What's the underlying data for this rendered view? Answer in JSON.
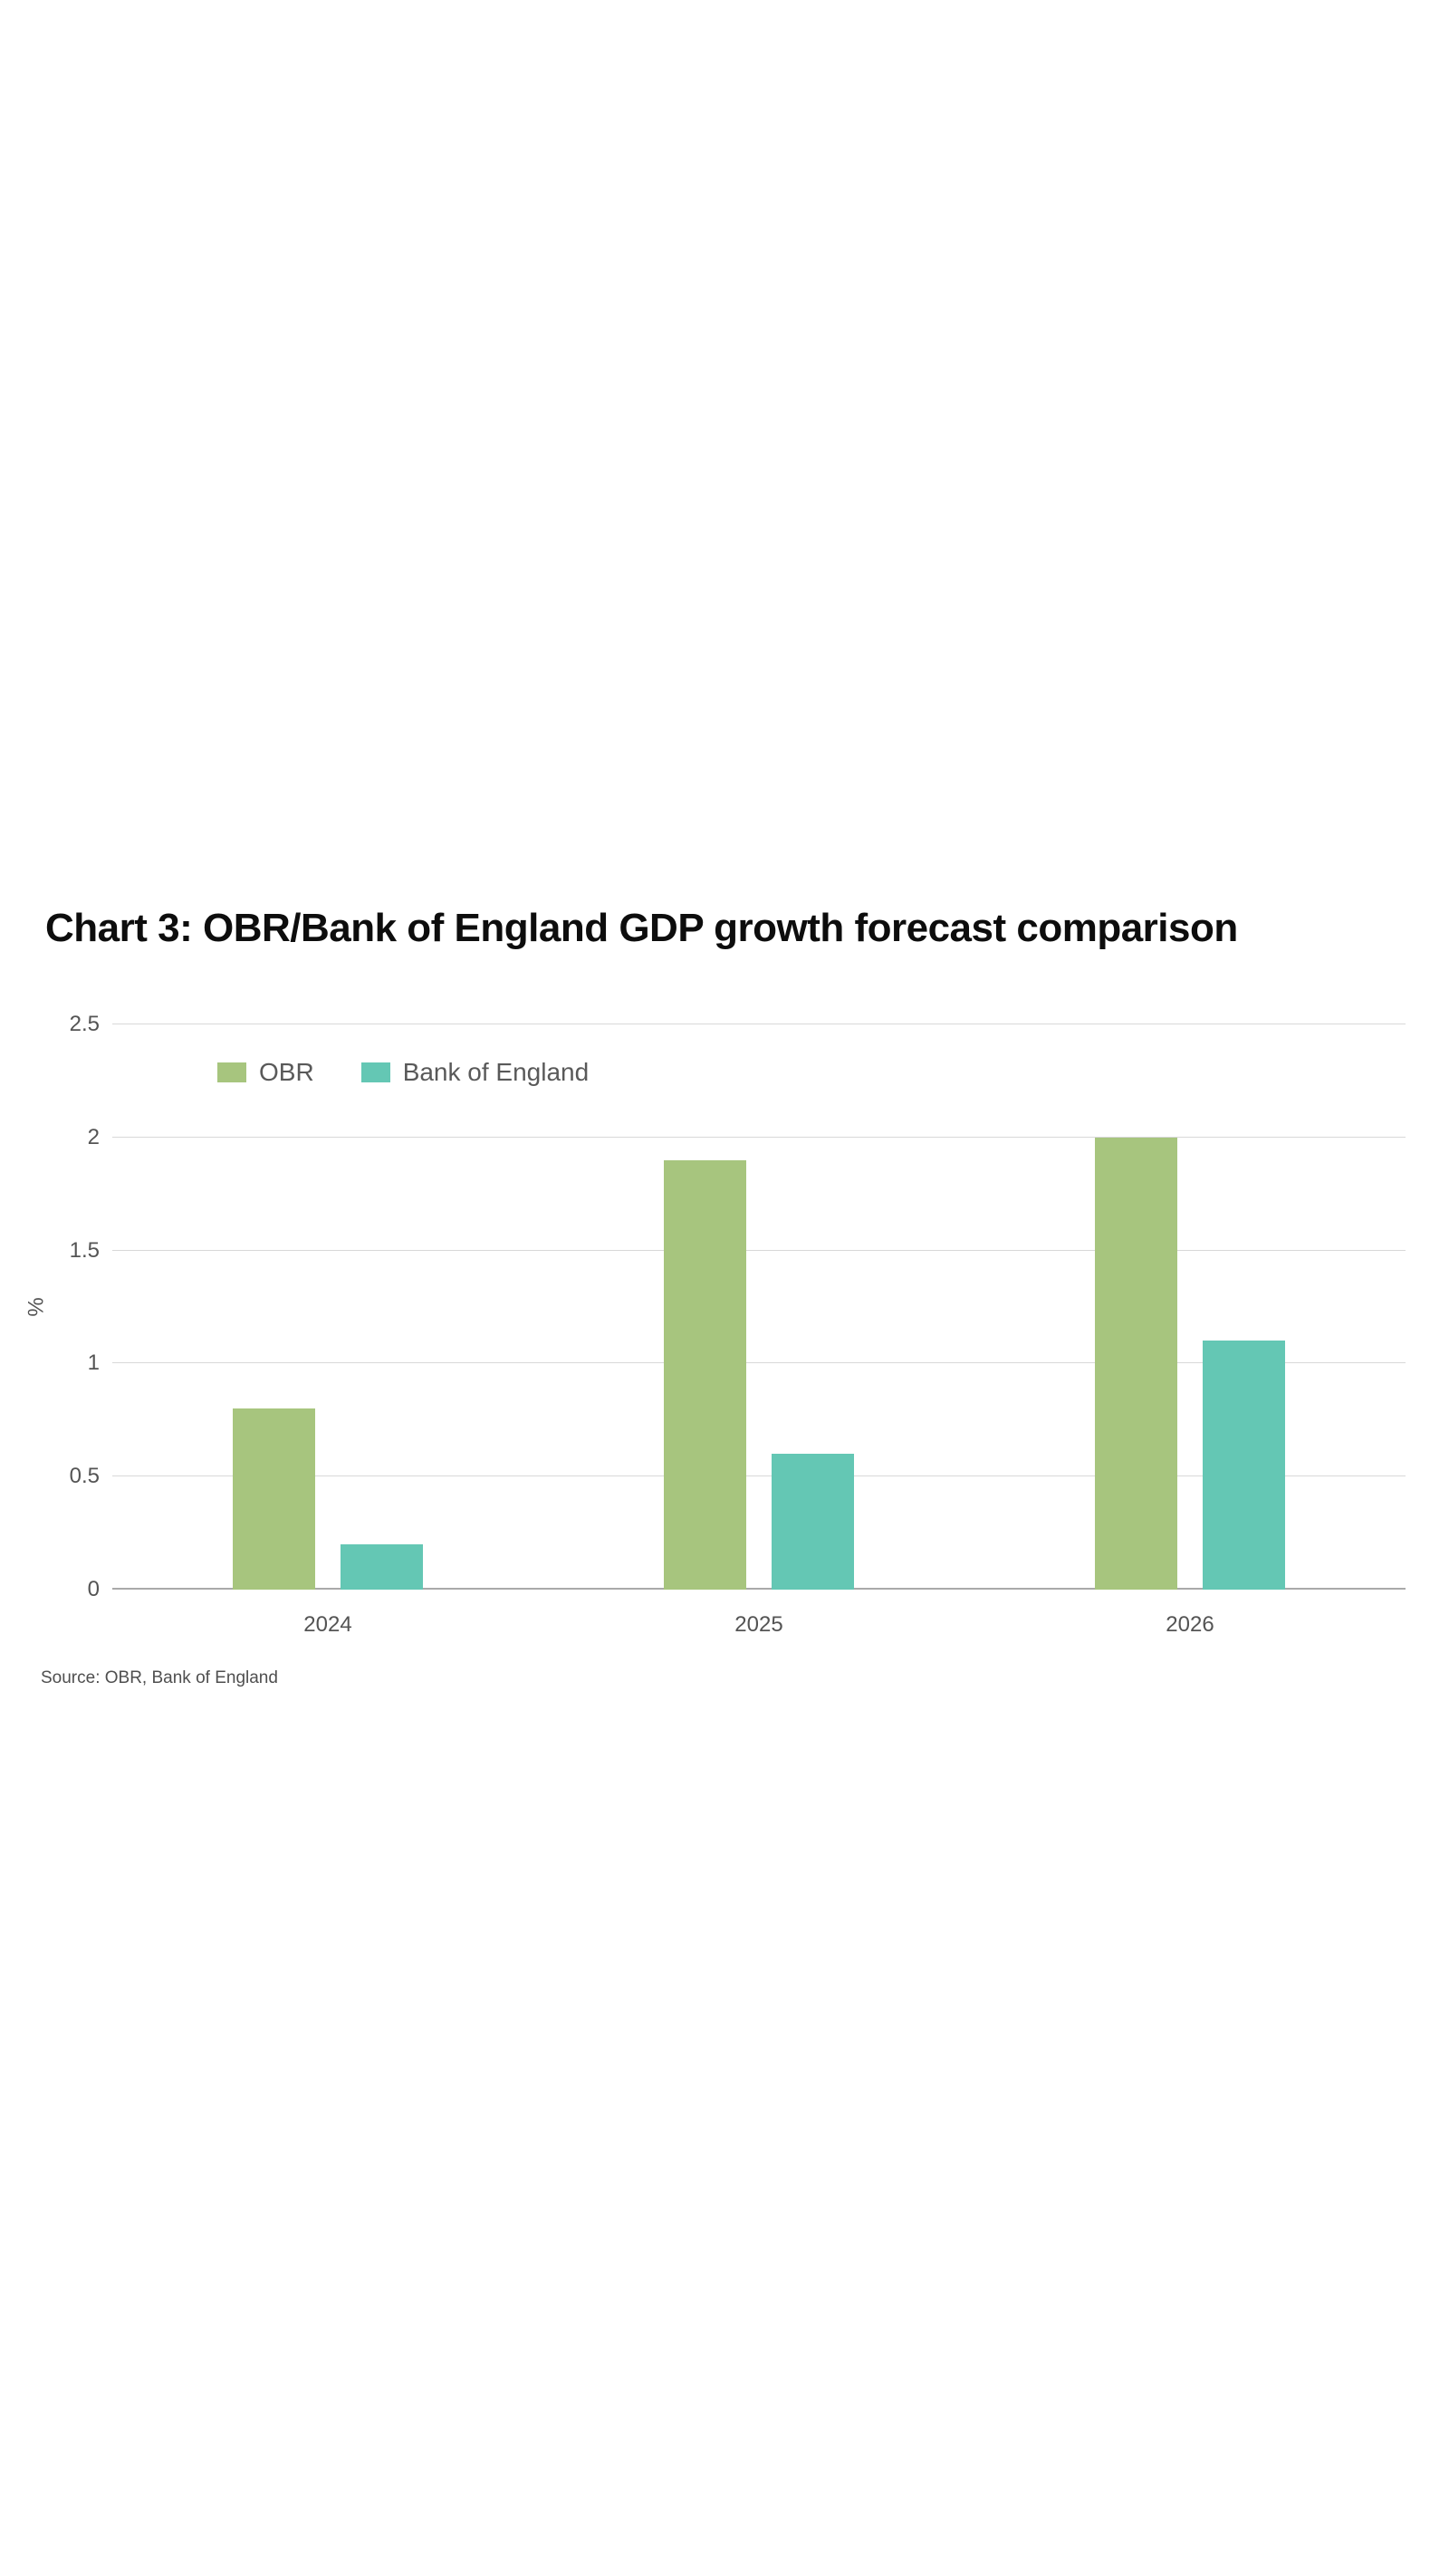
{
  "source_note": "Source: OBR, Bank of England",
  "colors": {
    "title_text": "#0d0d0d",
    "axis_text": "#545454",
    "legend_text": "#595959",
    "source_text": "#4f4f4f",
    "gridline": "#d8d8d8",
    "axis_line": "#a9a9a9",
    "background": "#ffffff"
  },
  "chart_data": {
    "type": "bar",
    "title": "Chart 3: OBR/Bank of England GDP growth forecast comparison",
    "categories": [
      "2024",
      "2025",
      "2026"
    ],
    "series": [
      {
        "name": "OBR",
        "color": "#a7c57e",
        "values": [
          0.8,
          1.9,
          2.0
        ]
      },
      {
        "name": "Bank of England",
        "color": "#64c7b4",
        "values": [
          0.2,
          0.6,
          1.1
        ]
      }
    ],
    "xlabel": "",
    "ylabel": "%",
    "ylim": [
      0,
      2.5
    ],
    "yticks": [
      0,
      0.5,
      1,
      1.5,
      2,
      2.5
    ],
    "grid": true,
    "legend_position": "top-left"
  }
}
